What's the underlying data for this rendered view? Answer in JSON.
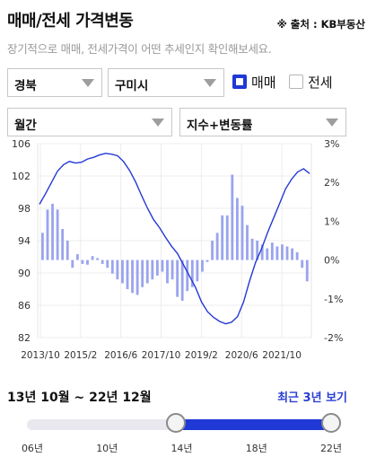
{
  "header": {
    "title": "매매/전세 가격변동",
    "source": "※ 출처 : KB부동산",
    "subtitle": "장기적으로 매매, 전세가격이 어떤 추세인지 확인해보세요."
  },
  "filters": {
    "region": "경북",
    "city": "구미시",
    "period": "월간",
    "metric": "지수+변동률",
    "checkboxes": [
      {
        "label": "매매",
        "checked": true
      },
      {
        "label": "전세",
        "checked": false
      }
    ]
  },
  "colors": {
    "accent": "#1f38d6",
    "bar": "#9aa4ee",
    "line": "#2438d6"
  },
  "chart_data": {
    "type": "line+bar",
    "x_ticks": [
      "2013/10",
      "2015/2",
      "2016/6",
      "2017/10",
      "2019/2",
      "2020/6",
      "2021/10"
    ],
    "y_left_ticks": [
      "106",
      "102",
      "98",
      "94",
      "90",
      "86",
      "82"
    ],
    "y_left_range": [
      82,
      106
    ],
    "y_right_ticks": [
      "3%",
      "2%",
      "1%",
      "0%",
      "-1%",
      "-2%"
    ],
    "y_right_range": [
      -2,
      3
    ],
    "series": [
      {
        "type": "line",
        "axis": "left",
        "values": [
          98.5,
          99.8,
          101.2,
          102.6,
          103.4,
          103.8,
          103.6,
          103.7,
          104.1,
          104.3,
          104.6,
          104.8,
          104.7,
          104.5,
          103.8,
          102.7,
          101.3,
          99.6,
          98.0,
          96.6,
          95.6,
          94.4,
          93.3,
          92.4,
          91.0,
          89.6,
          88.2,
          86.4,
          85.2,
          84.5,
          84.0,
          83.7,
          83.9,
          84.6,
          86.4,
          89.0,
          91.3,
          93.0,
          95.0,
          96.8,
          98.6,
          100.4,
          101.6,
          102.5,
          102.9,
          102.3
        ]
      },
      {
        "type": "bar",
        "axis": "right",
        "values": [
          0.7,
          1.3,
          1.45,
          1.3,
          0.8,
          0.5,
          -0.2,
          0.15,
          -0.1,
          -0.12,
          0.1,
          0.05,
          -0.1,
          -0.2,
          -0.35,
          -0.5,
          -0.6,
          -0.75,
          -0.85,
          -0.9,
          -0.7,
          -0.6,
          -0.5,
          -0.4,
          -0.3,
          -0.6,
          -0.5,
          -0.95,
          -1.05,
          -0.8,
          -0.7,
          -0.55,
          -0.3,
          -0.05,
          0.5,
          0.7,
          1.15,
          1.15,
          2.2,
          1.6,
          1.4,
          0.9,
          0.55,
          0.5,
          0.4,
          0.3,
          0.45,
          0.35,
          0.4,
          0.35,
          0.3,
          0.2,
          -0.2,
          -0.55
        ]
      }
    ]
  },
  "range": {
    "label": "13년 10월 ~ 22년 12월",
    "recent_link": "최근 3년 보기",
    "ticks": [
      "06년",
      "10년",
      "14년",
      "18년",
      "22년"
    ],
    "start_fraction": 0.48,
    "end_fraction": 1.0
  }
}
